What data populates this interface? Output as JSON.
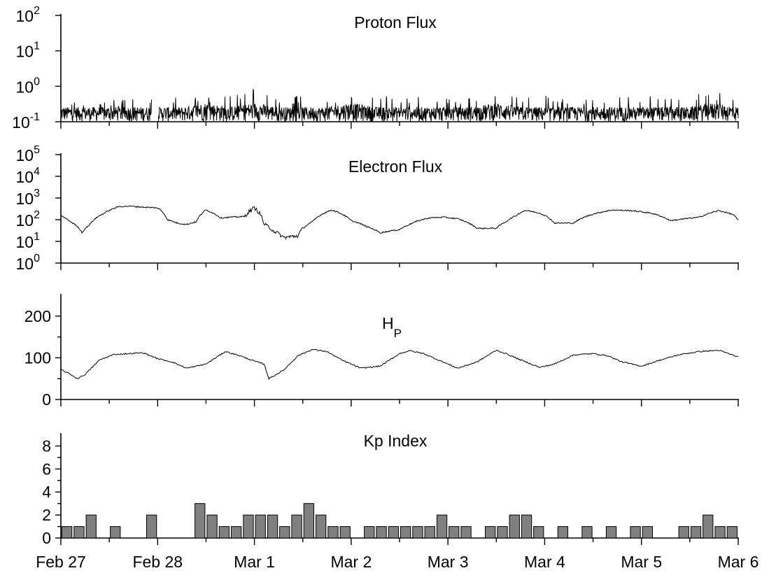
{
  "chart_data": [
    {
      "type": "line",
      "title": "Proton Flux",
      "y_scale": "log",
      "ylim": [
        0.1,
        100
      ],
      "y_tick_exponents": [
        "2",
        "1",
        "0",
        "-1"
      ],
      "x_range": [
        "Feb 27",
        "Mar 6"
      ],
      "series": [
        {
          "x_days_from_feb27": [
            0.0,
            0.25,
            0.5,
            0.75,
            1.0,
            1.25,
            1.5,
            1.75,
            2.0,
            2.25,
            2.5,
            2.75,
            3.0,
            3.25,
            3.5,
            3.75,
            4.0,
            4.25,
            4.5,
            4.75,
            5.0,
            5.25,
            5.5,
            5.75,
            6.0,
            6.25,
            6.5,
            6.75,
            7.0
          ],
          "y_typical": [
            0.2,
            0.2,
            0.2,
            0.2,
            0.2,
            0.2,
            0.25,
            0.2,
            0.25,
            0.2,
            0.2,
            0.2,
            0.25,
            0.2,
            0.2,
            0.2,
            0.2,
            0.2,
            0.25,
            0.2,
            0.2,
            0.2,
            0.2,
            0.2,
            0.2,
            0.2,
            0.2,
            0.25,
            0.2
          ],
          "y_peaks": [
            0.45,
            0.4,
            0.4,
            0.45,
            0.45,
            0.5,
            0.6,
            0.55,
            0.85,
            0.5,
            0.55,
            0.5,
            0.55,
            0.5,
            0.55,
            0.6,
            0.55,
            0.5,
            0.6,
            0.5,
            0.55,
            0.5,
            0.5,
            0.5,
            0.55,
            0.5,
            0.55,
            0.7,
            0.55
          ]
        }
      ]
    },
    {
      "type": "line",
      "title": "Electron Flux",
      "y_scale": "log",
      "ylim": [
        1,
        100000
      ],
      "y_tick_exponents": [
        "5",
        "4",
        "3",
        "2",
        "1",
        "0"
      ],
      "x_range": [
        "Feb 27",
        "Mar 6"
      ],
      "series": [
        {
          "x_days_from_feb27": [
            0.0,
            0.1,
            0.22,
            0.3,
            0.45,
            0.6,
            0.7,
            0.85,
            1.0,
            1.1,
            1.2,
            1.3,
            1.4,
            1.5,
            1.65,
            1.75,
            1.9,
            2.0,
            2.1,
            2.2,
            2.3,
            2.45,
            2.6,
            2.8,
            3.0,
            3.15,
            3.3,
            3.5,
            3.6,
            3.8,
            3.95,
            4.1,
            4.3,
            4.5,
            4.6,
            4.7,
            4.8,
            4.95,
            5.1,
            5.3,
            5.5,
            5.7,
            5.9,
            6.1,
            6.3,
            6.6,
            6.8,
            6.95,
            7.0
          ],
          "y": [
            150,
            80,
            25,
            60,
            200,
            400,
            420,
            380,
            350,
            100,
            70,
            60,
            80,
            280,
            120,
            130,
            140,
            350,
            60,
            30,
            15,
            18,
            80,
            280,
            90,
            50,
            25,
            35,
            60,
            120,
            130,
            110,
            40,
            40,
            80,
            150,
            270,
            200,
            70,
            70,
            180,
            280,
            260,
            200,
            90,
            130,
            260,
            170,
            90
          ]
        }
      ]
    },
    {
      "type": "line",
      "title": "H_P",
      "title_base": "H",
      "title_subscript": "P",
      "ylim": [
        0,
        250
      ],
      "y_ticks": [
        "0",
        "100",
        "200"
      ],
      "x_range": [
        "Feb 27",
        "Mar 6"
      ],
      "series": [
        {
          "x_days_from_feb27": [
            0.0,
            0.1,
            0.17,
            0.25,
            0.4,
            0.55,
            0.7,
            0.85,
            1.0,
            1.15,
            1.3,
            1.5,
            1.7,
            1.85,
            2.0,
            2.1,
            2.15,
            2.3,
            2.45,
            2.6,
            2.75,
            2.9,
            3.1,
            3.3,
            3.5,
            3.6,
            3.75,
            3.9,
            4.1,
            4.3,
            4.5,
            4.6,
            4.75,
            4.95,
            5.1,
            5.3,
            5.5,
            5.65,
            5.8,
            6.0,
            6.2,
            6.4,
            6.6,
            6.8,
            7.0
          ],
          "y": [
            72,
            60,
            50,
            60,
            95,
            108,
            110,
            112,
            98,
            90,
            75,
            85,
            115,
            105,
            92,
            85,
            50,
            70,
            105,
            120,
            115,
            95,
            75,
            80,
            110,
            117,
            110,
            95,
            75,
            90,
            118,
            110,
            95,
            77,
            85,
            107,
            110,
            105,
            90,
            80,
            95,
            108,
            115,
            118,
            102
          ]
        }
      ]
    },
    {
      "type": "bar",
      "title": "Kp Index",
      "ylim": [
        0,
        9
      ],
      "y_ticks": [
        "0",
        "2",
        "4",
        "6",
        "8"
      ],
      "x_tick_labels": [
        "Feb 27",
        "Feb 28",
        "Mar 1",
        "Mar 2",
        "Mar 3",
        "Mar 4",
        "Mar 5",
        "Mar 6"
      ],
      "bar_width_days": 0.125,
      "x_days_from_feb27": [
        0.0,
        0.125,
        0.25,
        0.5,
        0.875,
        1.375,
        1.5,
        1.625,
        1.75,
        1.875,
        2.0,
        2.125,
        2.25,
        2.375,
        2.5,
        2.625,
        2.75,
        2.875,
        3.125,
        3.25,
        3.375,
        3.5,
        3.625,
        3.75,
        3.875,
        4.0,
        4.125,
        4.375,
        4.5,
        4.625,
        4.75,
        4.875,
        5.125,
        5.375,
        5.625,
        5.875,
        6.0,
        6.375,
        6.5,
        6.625,
        6.75,
        6.875
      ],
      "values": [
        1,
        1,
        2,
        1,
        2,
        3,
        2,
        1,
        1,
        2,
        2,
        2,
        1,
        2,
        3,
        2,
        1,
        1,
        1,
        1,
        1,
        1,
        1,
        1,
        2,
        1,
        1,
        1,
        1,
        2,
        2,
        1,
        1,
        1,
        1,
        1,
        1,
        1,
        1,
        2,
        1,
        1
      ]
    }
  ]
}
